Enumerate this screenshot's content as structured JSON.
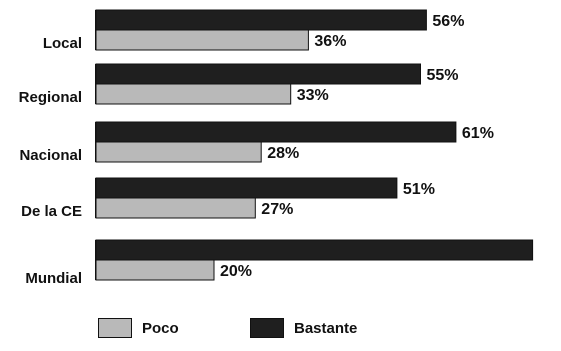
{
  "chart_data": {
    "type": "bar",
    "orientation": "horizontal",
    "categories": [
      "Local",
      "Regional",
      "Nacional",
      "De la CE",
      "Mundial"
    ],
    "series": [
      {
        "name": "Bastante",
        "values": [
          56,
          55,
          61,
          51,
          74
        ],
        "labels": [
          "56%",
          "55%",
          "61%",
          "51%",
          ""
        ],
        "color": "#1f1f1f"
      },
      {
        "name": "Poco",
        "values": [
          36,
          33,
          28,
          27,
          20
        ],
        "labels": [
          "36%",
          "33%",
          "28%",
          "27%",
          "20%"
        ],
        "color": "#b9b9b9"
      }
    ],
    "xlim": [
      0,
      100
    ],
    "grid": false,
    "legend": "bottom-left"
  }
}
